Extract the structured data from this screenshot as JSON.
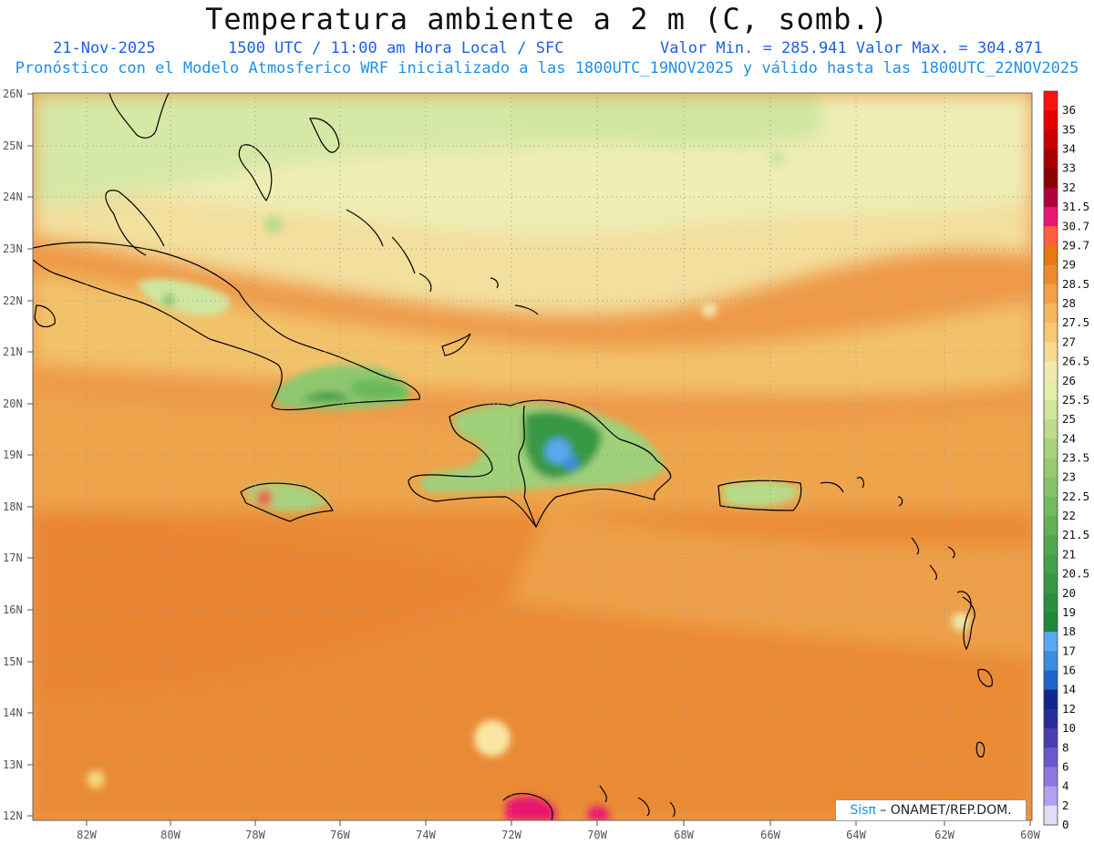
{
  "title": "Temperatura ambiente a 2 m (C, somb.)",
  "date": "21-Nov-2025",
  "time_info": "1500 UTC / 11:00 am Hora Local / SFC",
  "min_max": "Valor Min. = 285.941  Valor Max. = 304.871",
  "forecast_note": "Pronóstico con el Modelo Atmosferico WRF inicializado a las 1800UTC_19NOV2025 y válido hasta las  1800UTC_22NOV2025",
  "credit": {
    "sis": "Sisπ",
    "org": " – ONAMET/REP.DOM."
  },
  "lat_labels": [
    "26N",
    "25N",
    "24N",
    "23N",
    "22N",
    "21N",
    "20N",
    "19N",
    "18N",
    "17N",
    "16N",
    "15N",
    "14N",
    "13N",
    "12N"
  ],
  "lon_labels": [
    "82W",
    "80W",
    "78W",
    "76W",
    "74W",
    "72W",
    "70W",
    "68W",
    "66W",
    "64W",
    "62W",
    "60W"
  ],
  "colorbar": {
    "labels": [
      "36",
      "35",
      "34",
      "33",
      "32",
      "31.5",
      "30.7",
      "29.7",
      "29",
      "28.5",
      "28",
      "27.5",
      "27",
      "26.5",
      "26",
      "25.5",
      "25",
      "24",
      "23.5",
      "23",
      "22.5",
      "22",
      "21.5",
      "21",
      "20.5",
      "20",
      "19",
      "18",
      "17",
      "16",
      "14",
      "12",
      "10",
      "8",
      "6",
      "4",
      "2",
      "0"
    ],
    "colors": [
      "#ff1010",
      "#e60000",
      "#c80000",
      "#a80000",
      "#8c0000",
      "#b0003c",
      "#e81670",
      "#ff5e3a",
      "#e87810",
      "#ee8a2e",
      "#f2a044",
      "#f4b658",
      "#f6c874",
      "#f8da8e",
      "#f0eab0",
      "#e2eeaa",
      "#cfe69c",
      "#bcdc8c",
      "#a8d27e",
      "#98ca72",
      "#86c268",
      "#74ba5e",
      "#62b058",
      "#52a650",
      "#44a04a",
      "#389844",
      "#2a9040",
      "#1e8838",
      "#5aa8f0",
      "#3c8ce0",
      "#1e64cc",
      "#102690",
      "#282c9c",
      "#4a3cb4",
      "#6a58cc",
      "#8c78e0",
      "#b2a0f0",
      "#e2ddf8"
    ]
  },
  "legend_title": "Temperatura ambiente a 2 m (C, somb.)"
}
